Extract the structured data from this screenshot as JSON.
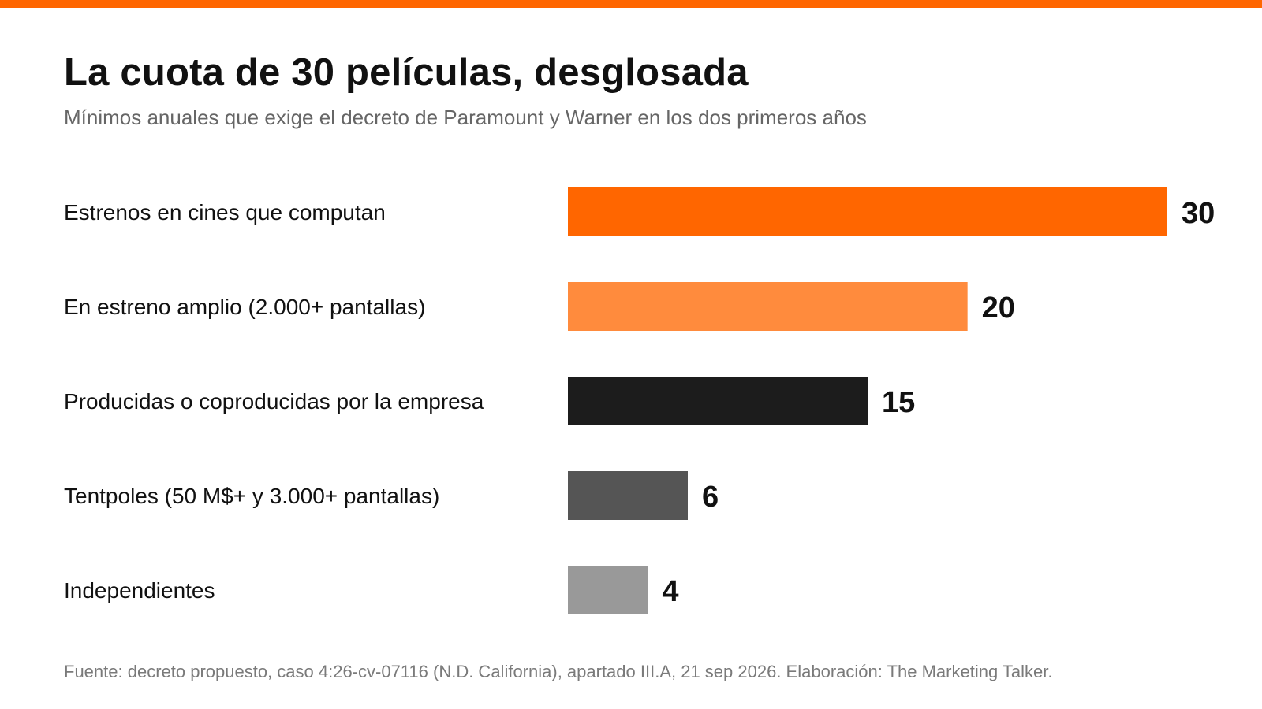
{
  "colors": {
    "accent": "#FF6600",
    "bars": [
      "#FF6600",
      "#FF8B3D",
      "#1C1C1C",
      "#555555",
      "#999999"
    ]
  },
  "header": {
    "title": "La cuota de 30 películas, desglosada",
    "subtitle": "Mínimos anuales que exige el decreto de Paramount y Warner en los dos primeros años"
  },
  "footer": {
    "source": "Fuente: decreto propuesto, caso 4:26-cv-07116 (N.D. California), apartado III.A, 21 sep 2026. Elaboración: The Marketing Talker."
  },
  "chart_data": {
    "type": "bar",
    "orientation": "horizontal",
    "title": "La cuota de 30 películas, desglosada",
    "subtitle": "Mínimos anuales que exige el decreto de Paramount y Warner en los dos primeros años",
    "categories": [
      "Estrenos en cines que computan",
      "En estreno amplio (2.000+ pantallas)",
      "Producidas o coproducidas por la empresa",
      "Tentpoles (50 M$+ y 3.000+ pantallas)",
      "Independientes"
    ],
    "values": [
      30,
      20,
      15,
      6,
      4
    ],
    "xlim": [
      0,
      30
    ],
    "grid": false,
    "legend": "none",
    "data_labels": true
  }
}
